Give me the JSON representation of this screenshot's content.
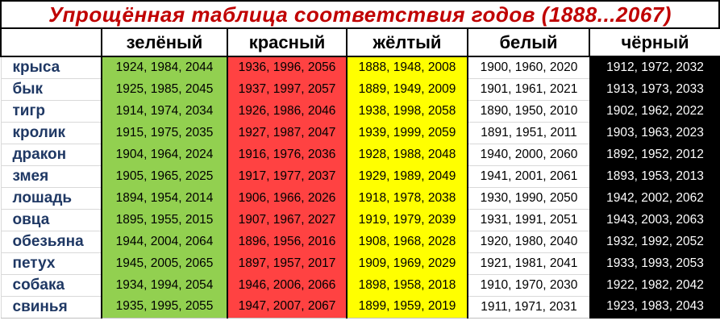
{
  "chart_data": {
    "type": "table",
    "title": "Упрощённая таблица соответствия годов (1888...2067)",
    "columns": [
      {
        "key": "green",
        "label": "зелёный",
        "bg": "#92D050",
        "text": "#000000"
      },
      {
        "key": "red",
        "label": "красный",
        "bg": "#FF4242",
        "text": "#000000"
      },
      {
        "key": "yellow",
        "label": "жёлтый",
        "bg": "#FFFF00",
        "text": "#000000"
      },
      {
        "key": "white",
        "label": "белый",
        "bg": "#FFFFFF",
        "text": "#000000"
      },
      {
        "key": "black",
        "label": "чёрный",
        "bg": "#000000",
        "text": "#FFFFFF"
      }
    ],
    "rows": [
      {
        "animal": "крыса",
        "years": [
          "1924, 1984, 2044",
          "1936, 1996, 2056",
          "1888, 1948, 2008",
          "1900, 1960, 2020",
          "1912, 1972, 2032"
        ]
      },
      {
        "animal": "бык",
        "years": [
          "1925, 1985, 2045",
          "1937, 1997, 2057",
          "1889, 1949, 2009",
          "1901, 1961, 2021",
          "1913, 1973, 2033"
        ]
      },
      {
        "animal": "тигр",
        "years": [
          "1914, 1974, 2034",
          "1926, 1986, 2046",
          "1938, 1998, 2058",
          "1890, 1950, 2010",
          "1902, 1962, 2022"
        ]
      },
      {
        "animal": "кролик",
        "years": [
          "1915, 1975, 2035",
          "1927, 1987, 2047",
          "1939, 1999, 2059",
          "1891, 1951, 2011",
          "1903, 1963, 2023"
        ]
      },
      {
        "animal": "дракон",
        "years": [
          "1904, 1964, 2024",
          "1916, 1976, 2036",
          "1928, 1988, 2048",
          "1940, 2000, 2060",
          "1892, 1952, 2012"
        ]
      },
      {
        "animal": "змея",
        "years": [
          "1905, 1965, 2025",
          "1917, 1977, 2037",
          "1929, 1989, 2049",
          "1941, 2001, 2061",
          "1893, 1953, 2013"
        ]
      },
      {
        "animal": "лошадь",
        "years": [
          "1894, 1954, 2014",
          "1906, 1966, 2026",
          "1918, 1978, 2038",
          "1930, 1990, 2050",
          "1942, 2002, 2062"
        ]
      },
      {
        "animal": "овца",
        "years": [
          "1895, 1955, 2015",
          "1907, 1967, 2027",
          "1919, 1979, 2039",
          "1931, 1991, 2051",
          "1943, 2003, 2063"
        ]
      },
      {
        "animal": "обезьяна",
        "years": [
          "1944, 2004, 2064",
          "1896, 1956, 2016",
          "1908, 1968, 2028",
          "1920, 1980, 2040",
          "1932, 1992, 2052"
        ]
      },
      {
        "animal": "петух",
        "years": [
          "1945, 2005, 2065",
          "1897, 1957, 2017",
          "1909, 1969, 2029",
          "1921, 1981, 2041",
          "1933, 1993, 2053"
        ]
      },
      {
        "animal": "собака",
        "years": [
          "1934, 1994, 2054",
          "1946, 2006, 2066",
          "1898, 1958, 2018",
          "1910, 1970, 2030",
          "1922, 1982, 2042"
        ]
      },
      {
        "animal": "свинья",
        "years": [
          "1935, 1995, 2055",
          "1947, 2007, 2067",
          "1899, 1959, 2019",
          "1911, 1971, 2031",
          "1923, 1983, 2043"
        ]
      }
    ],
    "layout": {
      "row_header_column": "animal names, dark navy bold text on white",
      "grid": "black 2px verticals between color columns; light gray row separators in white columns"
    }
  },
  "colors": {
    "title_text": "#C00000",
    "animal_text": "#1F3864",
    "border_black": "#000000",
    "grid_light": "#D9D9D9"
  }
}
